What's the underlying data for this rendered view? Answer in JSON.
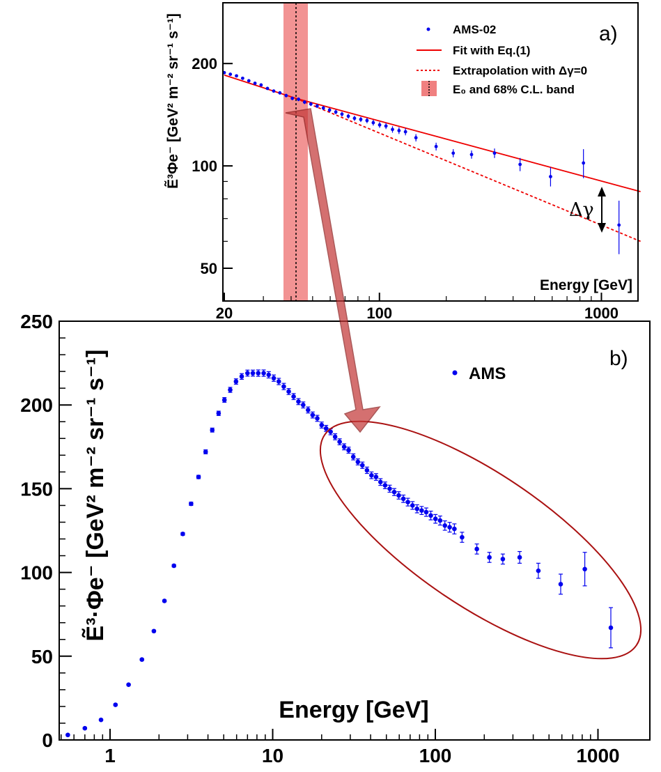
{
  "chart_data": [
    {
      "panel": "b)",
      "type": "scatter",
      "x_scale": "log",
      "xlim": [
        0.5,
        2000
      ],
      "ylim": [
        0,
        250
      ],
      "xlabel": "Energy [GeV]",
      "ylabel": "Ẽ³·Φe⁻ [GeV² m⁻² sr⁻¹ s⁻¹]",
      "x_ticks": [
        1,
        10,
        100,
        1000
      ],
      "x_tick_labels": [
        "1",
        "10",
        "100",
        "1000"
      ],
      "y_ticks": [
        0,
        50,
        100,
        150,
        200,
        250
      ],
      "y_tick_labels": [
        "0",
        "50",
        "100",
        "150",
        "200",
        "250"
      ],
      "legend": [
        {
          "label": "AMS",
          "marker": "dot",
          "color": "#0000ee"
        }
      ],
      "legend_position": "top-right",
      "grid": false,
      "series": [
        {
          "name": "AMS",
          "color": "#0000ee",
          "x": [
            0.55,
            0.7,
            0.88,
            1.08,
            1.3,
            1.57,
            1.86,
            2.16,
            2.47,
            2.8,
            3.15,
            3.5,
            3.87,
            4.25,
            4.65,
            5.05,
            5.48,
            5.95,
            6.45,
            7.0,
            7.55,
            8.15,
            8.8,
            9.45,
            10.15,
            10.9,
            11.7,
            12.55,
            13.45,
            14.4,
            15.4,
            16.5,
            17.6,
            18.8,
            20.0,
            21.3,
            22.7,
            24.2,
            25.8,
            27.5,
            29.3,
            31.3,
            33.4,
            35.6,
            38.0,
            40.5,
            43.2,
            46.0,
            49.1,
            52.4,
            55.9,
            59.6,
            63.6,
            67.8,
            72.4,
            77.2,
            82.4,
            87.9,
            93.8,
            100.2,
            107,
            114.5,
            122.5,
            131,
            146,
            180,
            215,
            260,
            330,
            430,
            590,
            830,
            1200
          ],
          "y": [
            3,
            7,
            12,
            21,
            33,
            48,
            65,
            83,
            104,
            123,
            141,
            157,
            172,
            185,
            195,
            203,
            209,
            214,
            217,
            219,
            219,
            219,
            219,
            218,
            216,
            214,
            211,
            208,
            205,
            202,
            200,
            197,
            194,
            192,
            188,
            186,
            184,
            181,
            178,
            175,
            173,
            169,
            166,
            164,
            161,
            158,
            157,
            154,
            152,
            150,
            148,
            146,
            144,
            142,
            140,
            138,
            137,
            136,
            134,
            132,
            131,
            128,
            127,
            126,
            121,
            114,
            109,
            108,
            109,
            101,
            93,
            102,
            67
          ],
          "y_err": [
            0.5,
            0.5,
            0.5,
            0.5,
            0.5,
            0.5,
            0.5,
            0.5,
            0.7,
            0.8,
            1,
            1,
            1.2,
            1.2,
            1.3,
            1.4,
            1.5,
            1.6,
            1.7,
            1.8,
            1.8,
            1.9,
            1.9,
            1.9,
            1.9,
            1.9,
            1.9,
            1.8,
            1.8,
            1.8,
            1.8,
            1.8,
            1.8,
            1.8,
            1.8,
            1.8,
            1.8,
            1.8,
            1.8,
            1.8,
            1.8,
            1.8,
            1.8,
            1.9,
            1.9,
            2,
            2,
            2,
            2,
            2.1,
            2.1,
            2.2,
            2.2,
            2.3,
            2.3,
            2.4,
            2.4,
            2.5,
            2.6,
            2.6,
            2.7,
            2.8,
            2.9,
            3,
            3,
            3,
            3,
            3,
            3.5,
            4.5,
            6,
            10,
            12
          ]
        }
      ],
      "annotation": "ellipse highlighting the high-energy region (approx. 20 – 1500 GeV), with an arrow from panel a)"
    },
    {
      "panel": "a)",
      "type": "scatter",
      "x_scale": "log",
      "y_scale": "log",
      "xlim": [
        20,
        1500
      ],
      "ylim": [
        35,
        300
      ],
      "xlabel": "Energy [GeV]",
      "ylabel": "Ẽ³Φe⁻ [GeV² m⁻² sr⁻¹ s⁻¹]",
      "x_ticks": [
        20,
        100,
        1000
      ],
      "x_tick_labels": [
        "20",
        "100",
        "1000"
      ],
      "y_ticks": [
        50,
        100,
        200
      ],
      "y_tick_labels": [
        "50",
        "100",
        "200"
      ],
      "legend": [
        {
          "label": "AMS-02",
          "style": "dot",
          "color": "#0000ee"
        },
        {
          "label": "Fit with Eq.(1)",
          "style": "solid-line",
          "color": "#ee0000"
        },
        {
          "label": "Extrapolation with Δγ=0",
          "style": "dashed-line",
          "color": "#ee0000"
        },
        {
          "label": "E₀ and 68% C.L. band",
          "style": "band",
          "color": "#f08080"
        }
      ],
      "legend_position": "top-right",
      "grid": false,
      "E0": 42,
      "E0_band": [
        38,
        47
      ],
      "delta_gamma_label": "Δγ",
      "fit_line": {
        "name": "Fit with Eq.(1)",
        "points": [
          [
            20,
            185
          ],
          [
            42,
            158
          ],
          [
            1500,
            84
          ]
        ]
      },
      "extrapolation_line": {
        "name": "Extrapolation with Δγ=0",
        "points": [
          [
            42,
            158
          ],
          [
            1500,
            60
          ]
        ]
      },
      "series": [
        {
          "name": "AMS-02",
          "color": "#0000ee",
          "x": [
            20.0,
            21.3,
            22.7,
            24.2,
            25.8,
            27.5,
            29.3,
            31.3,
            33.4,
            35.6,
            38.0,
            40.5,
            43.2,
            46.0,
            49.1,
            52.4,
            55.9,
            59.6,
            63.6,
            67.8,
            72.4,
            77.2,
            82.4,
            87.9,
            93.8,
            100.2,
            107,
            114.5,
            122.5,
            131,
            146,
            180,
            215,
            260,
            330,
            430,
            590,
            830,
            1200
          ],
          "y": [
            188,
            186,
            184,
            181,
            178,
            175,
            173,
            169,
            166,
            164,
            161,
            158,
            157,
            154,
            152,
            150,
            148,
            146,
            144,
            142,
            140,
            138,
            137,
            136,
            134,
            132,
            131,
            128,
            127,
            126,
            121,
            114,
            109,
            108,
            109,
            101,
            93,
            102,
            67
          ],
          "y_err": [
            1.8,
            1.8,
            1.8,
            1.8,
            1.8,
            1.8,
            1.8,
            1.8,
            1.8,
            1.9,
            1.9,
            2,
            2,
            2,
            2,
            2.1,
            2.1,
            2.2,
            2.2,
            2.3,
            2.3,
            2.4,
            2.4,
            2.5,
            2.6,
            2.6,
            2.7,
            2.8,
            2.9,
            3,
            3,
            3,
            3,
            3,
            3.5,
            4.5,
            6,
            10,
            12
          ]
        }
      ]
    }
  ]
}
